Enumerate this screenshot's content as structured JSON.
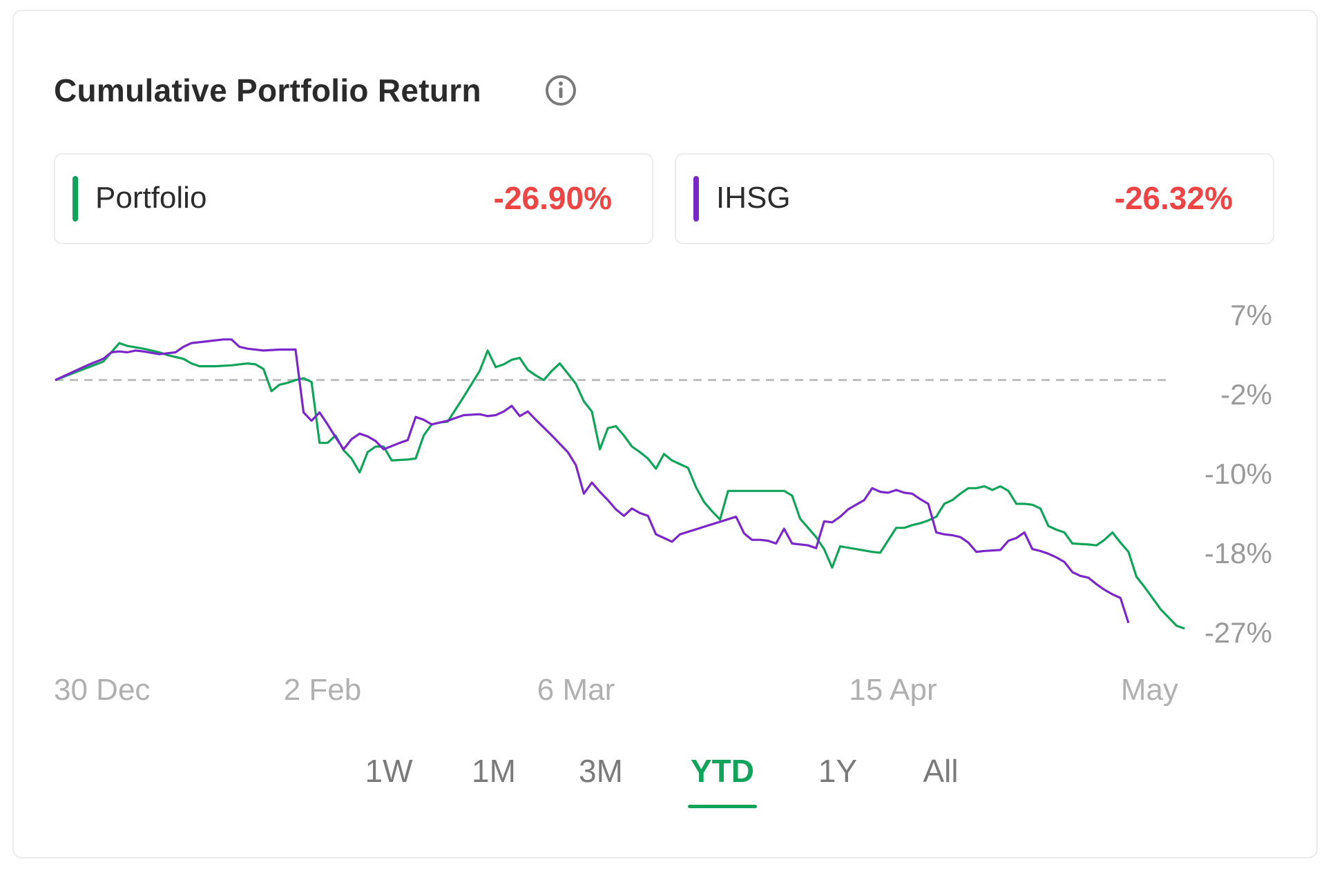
{
  "header": {
    "title": "Cumulative Portfolio Return",
    "info_icon": "info-circle-icon"
  },
  "legend": [
    {
      "name": "Portfolio",
      "value": "-26.90%",
      "color": "#10a35a"
    },
    {
      "name": "IHSG",
      "value": "-26.32%",
      "color": "#7b26c9"
    }
  ],
  "ranges": {
    "options": [
      "1W",
      "1M",
      "3M",
      "YTD",
      "1Y",
      "All"
    ],
    "selected": "YTD"
  },
  "colors": {
    "portfolio": "#10a35a",
    "ihsg": "#7b26c9",
    "negative": "#ee4444",
    "baseline": "#bdbdbd"
  },
  "chart_data": {
    "type": "line",
    "yticks": [
      "7%",
      "-2%",
      "-10%",
      "-18%",
      "-27%"
    ],
    "ytick_values": [
      7,
      -2,
      -10,
      -18,
      -27
    ],
    "ylim": [
      -27,
      7
    ],
    "xticks": [
      "30 Dec",
      "2 Feb",
      "6 Mar",
      "15 Apr",
      "May"
    ],
    "xtick_days": [
      0,
      34,
      66,
      106,
      139
    ],
    "xlim": [
      0,
      139
    ],
    "baseline": 0,
    "series": [
      {
        "name": "Portfolio",
        "points": [
          [
            0,
            0
          ],
          [
            3,
            1
          ],
          [
            6,
            2
          ],
          [
            7,
            3
          ],
          [
            8,
            4
          ],
          [
            9,
            3.7
          ],
          [
            11,
            3.4
          ],
          [
            13,
            3
          ],
          [
            14,
            2.7
          ],
          [
            16,
            2.3
          ],
          [
            17,
            1.8
          ],
          [
            18,
            1.5
          ],
          [
            20,
            1.5
          ],
          [
            22,
            1.6
          ],
          [
            24,
            1.8
          ],
          [
            25,
            1.7
          ],
          [
            26,
            1.2
          ],
          [
            27,
            -1.2
          ],
          [
            28,
            -0.5
          ],
          [
            29,
            -0.3
          ],
          [
            30,
            0
          ],
          [
            31,
            0.2
          ],
          [
            32,
            -0.2
          ],
          [
            33,
            -6.8
          ],
          [
            34,
            -6.8
          ],
          [
            35,
            -6
          ],
          [
            36,
            -7.6
          ],
          [
            37,
            -8.5
          ],
          [
            38,
            -10
          ],
          [
            39,
            -7.8
          ],
          [
            40,
            -7.2
          ],
          [
            41,
            -7.2
          ],
          [
            42,
            -8.7
          ],
          [
            44,
            -8.6
          ],
          [
            45,
            -8.5
          ],
          [
            46,
            -6
          ],
          [
            47,
            -4.8
          ],
          [
            48,
            -4.6
          ],
          [
            49,
            -4.5
          ],
          [
            51,
            -1.8
          ],
          [
            53,
            1
          ],
          [
            54,
            3.2
          ],
          [
            55,
            1.4
          ],
          [
            56,
            1.7
          ],
          [
            57,
            2.2
          ],
          [
            58,
            2.4
          ],
          [
            59,
            1.1
          ],
          [
            60,
            0.5
          ],
          [
            61,
            0
          ],
          [
            62,
            1
          ],
          [
            63,
            1.8
          ],
          [
            64,
            0.7
          ],
          [
            65,
            -0.4
          ],
          [
            66,
            -2.3
          ],
          [
            67,
            -3.4
          ],
          [
            68,
            -7.5
          ],
          [
            69,
            -5.2
          ],
          [
            70,
            -5
          ],
          [
            71,
            -6
          ],
          [
            72,
            -7.2
          ],
          [
            73,
            -7.8
          ],
          [
            74,
            -8.5
          ],
          [
            75,
            -9.6
          ],
          [
            76,
            -8
          ],
          [
            77,
            -8.7
          ],
          [
            78,
            -9.1
          ],
          [
            79,
            -9.5
          ],
          [
            80,
            -11.6
          ],
          [
            81,
            -13.2
          ],
          [
            82,
            -14.2
          ],
          [
            83,
            -15.1
          ],
          [
            84,
            -12
          ],
          [
            91,
            -12
          ],
          [
            92,
            -12.5
          ],
          [
            93,
            -15
          ],
          [
            94,
            -16
          ],
          [
            95,
            -17
          ],
          [
            96,
            -18.3
          ],
          [
            97,
            -20.3
          ],
          [
            98,
            -18
          ],
          [
            102,
            -18.6
          ],
          [
            103,
            -18.7
          ],
          [
            105,
            -16
          ],
          [
            106,
            -16
          ],
          [
            107,
            -15.7
          ],
          [
            108,
            -15.5
          ],
          [
            109,
            -15.2
          ],
          [
            110,
            -14.8
          ],
          [
            111,
            -13.4
          ],
          [
            112,
            -13
          ],
          [
            113,
            -12.3
          ],
          [
            114,
            -11.7
          ],
          [
            115,
            -11.7
          ],
          [
            116,
            -11.5
          ],
          [
            117,
            -11.9
          ],
          [
            118,
            -11.5
          ],
          [
            119,
            -12
          ],
          [
            120,
            -13.4
          ],
          [
            121,
            -13.4
          ],
          [
            122,
            -13.5
          ],
          [
            123,
            -13.9
          ],
          [
            124,
            -15.8
          ],
          [
            125,
            -16.2
          ],
          [
            126,
            -16.5
          ],
          [
            127,
            -17.7
          ],
          [
            129,
            -17.8
          ],
          [
            130,
            -17.9
          ],
          [
            131,
            -17.3
          ],
          [
            132,
            -16.5
          ],
          [
            133,
            -17.6
          ],
          [
            134,
            -18.6
          ],
          [
            135,
            -21.3
          ],
          [
            136,
            -22.4
          ],
          [
            137,
            -23.6
          ],
          [
            138,
            -24.8
          ],
          [
            139,
            -25.7
          ],
          [
            140,
            -26.6
          ],
          [
            141,
            -26.9
          ]
        ]
      },
      {
        "name": "IHSG",
        "points": [
          [
            0,
            0
          ],
          [
            2,
            0.8
          ],
          [
            4,
            1.6
          ],
          [
            6,
            2.3
          ],
          [
            7,
            3
          ],
          [
            8,
            3.1
          ],
          [
            9,
            3
          ],
          [
            10,
            3.2
          ],
          [
            11,
            3.1
          ],
          [
            13,
            2.8
          ],
          [
            15,
            3
          ],
          [
            16,
            3.6
          ],
          [
            17,
            4
          ],
          [
            19,
            4.2
          ],
          [
            21,
            4.4
          ],
          [
            22,
            4.4
          ],
          [
            23,
            3.6
          ],
          [
            24,
            3.4
          ],
          [
            26,
            3.2
          ],
          [
            28,
            3.3
          ],
          [
            30,
            3.3
          ],
          [
            31,
            -3.5
          ],
          [
            32,
            -4.4
          ],
          [
            33,
            -3.5
          ],
          [
            34,
            -4.8
          ],
          [
            35,
            -6.2
          ],
          [
            36,
            -7.5
          ],
          [
            37,
            -6.4
          ],
          [
            38,
            -5.8
          ],
          [
            39,
            -6.1
          ],
          [
            40,
            -6.6
          ],
          [
            41,
            -7.5
          ],
          [
            43,
            -6.8
          ],
          [
            44,
            -6.5
          ],
          [
            45,
            -4
          ],
          [
            46,
            -4.3
          ],
          [
            47,
            -4.8
          ],
          [
            49,
            -4.4
          ],
          [
            50,
            -4.1
          ],
          [
            51,
            -3.8
          ],
          [
            53,
            -3.7
          ],
          [
            54,
            -3.9
          ],
          [
            55,
            -3.8
          ],
          [
            56,
            -3.4
          ],
          [
            57,
            -2.8
          ],
          [
            58,
            -3.9
          ],
          [
            59,
            -3.4
          ],
          [
            60,
            -4.3
          ],
          [
            62,
            -6
          ],
          [
            64,
            -7.8
          ],
          [
            65,
            -9.2
          ],
          [
            66,
            -12.3
          ],
          [
            67,
            -11.1
          ],
          [
            68,
            -12.1
          ],
          [
            69,
            -13
          ],
          [
            70,
            -14
          ],
          [
            71,
            -14.7
          ],
          [
            72,
            -13.9
          ],
          [
            73,
            -14.4
          ],
          [
            74,
            -14.7
          ],
          [
            75,
            -16.7
          ],
          [
            76,
            -17.1
          ],
          [
            77,
            -17.5
          ],
          [
            78,
            -16.7
          ],
          [
            85,
            -14.8
          ],
          [
            86,
            -16.6
          ],
          [
            87,
            -17.3
          ],
          [
            88,
            -17.3
          ],
          [
            89,
            -17.4
          ],
          [
            90,
            -17.7
          ],
          [
            91,
            -16.1
          ],
          [
            92,
            -17.7
          ],
          [
            94,
            -17.9
          ],
          [
            95,
            -18.2
          ],
          [
            96,
            -15.3
          ],
          [
            97,
            -15.4
          ],
          [
            98,
            -14.8
          ],
          [
            99,
            -14
          ],
          [
            100,
            -13.5
          ],
          [
            101,
            -13
          ],
          [
            102,
            -11.7
          ],
          [
            103,
            -12.1
          ],
          [
            104,
            -12.2
          ],
          [
            105,
            -11.9
          ],
          [
            106,
            -12.2
          ],
          [
            107,
            -12.3
          ],
          [
            108,
            -12.9
          ],
          [
            109,
            -13.4
          ],
          [
            110,
            -16.5
          ],
          [
            111,
            -16.7
          ],
          [
            112,
            -16.8
          ],
          [
            113,
            -17
          ],
          [
            114,
            -17.6
          ],
          [
            115,
            -18.6
          ],
          [
            116,
            -18.5
          ],
          [
            118,
            -18.4
          ],
          [
            119,
            -17.4
          ],
          [
            120,
            -17.1
          ],
          [
            121,
            -16.5
          ],
          [
            122,
            -18.3
          ],
          [
            123,
            -18.5
          ],
          [
            124,
            -18.8
          ],
          [
            125,
            -19.2
          ],
          [
            126,
            -19.7
          ],
          [
            127,
            -20.8
          ],
          [
            128,
            -21.2
          ],
          [
            129,
            -21.4
          ],
          [
            130,
            -22.1
          ],
          [
            131,
            -22.7
          ],
          [
            132,
            -23.2
          ],
          [
            133,
            -23.6
          ],
          [
            134,
            -26.3
          ]
        ]
      }
    ]
  }
}
